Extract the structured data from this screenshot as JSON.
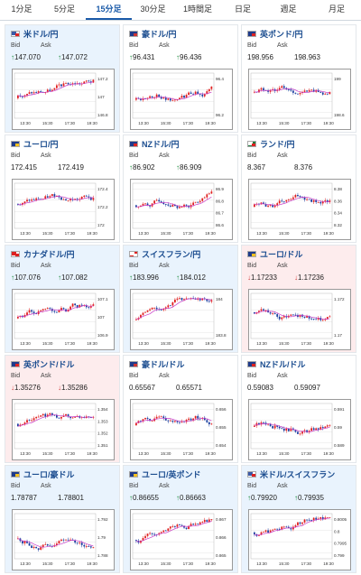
{
  "tabs": [
    {
      "label": "1分足"
    },
    {
      "label": "5分足"
    },
    {
      "label": "15分足",
      "active": true
    },
    {
      "label": "30分足"
    },
    {
      "label": "1時間足"
    },
    {
      "label": "日足"
    },
    {
      "label": "週足"
    },
    {
      "label": "月足"
    }
  ],
  "labels": {
    "bid": "Bid",
    "ask": "Ask"
  },
  "colors": {
    "up": "#1a8a3a",
    "down": "#d23a3a",
    "candle_up": "#e02020",
    "candle_down": "#1c3fa0",
    "ma": "#c83cc8",
    "pair": "#1a4c8f"
  },
  "cards": [
    {
      "pair": "米ドル/円",
      "flag": "us",
      "bg": "blue",
      "trend": "up",
      "bid": "147.070",
      "ask": "147.072",
      "yticks": [
        "147.2",
        "147",
        "146.8"
      ],
      "xticks": [
        "13:30",
        "15:30",
        "17:30",
        "19:30"
      ]
    },
    {
      "pair": "豪ドル/円",
      "flag": "au",
      "bg": "white",
      "trend": "up",
      "bid": "96.431",
      "ask": "96.436",
      "yticks": [
        "96.4",
        "96.2"
      ],
      "xticks": [
        "13:30",
        "15:30",
        "17:30",
        "19:30"
      ]
    },
    {
      "pair": "英ポンド/円",
      "flag": "uk",
      "bg": "white",
      "trend": "none",
      "bid": "198.956",
      "ask": "198.963",
      "yticks": [
        "199",
        "198.6"
      ],
      "xticks": [
        "13:30",
        "15:30",
        "17:30",
        "19:30"
      ]
    },
    {
      "pair": "ユーロ/円",
      "flag": "eu",
      "bg": "white",
      "trend": "none",
      "bid": "172.415",
      "ask": "172.419",
      "yticks": [
        "172.4",
        "172.2",
        "172"
      ],
      "xticks": [
        "13:30",
        "15:30",
        "17:30",
        "19:30"
      ]
    },
    {
      "pair": "NZドル/円",
      "flag": "nz",
      "bg": "white",
      "trend": "up",
      "bid": "86.902",
      "ask": "86.909",
      "yticks": [
        "86.9",
        "86.8",
        "86.7",
        "86.6"
      ],
      "xticks": [
        "13:30",
        "15:30",
        "17:30",
        "19:30"
      ]
    },
    {
      "pair": "ランド/円",
      "flag": "za",
      "bg": "white",
      "trend": "none",
      "bid": "8.367",
      "ask": "8.376",
      "yticks": [
        "8.38",
        "8.36",
        "8.34",
        "8.32"
      ],
      "xticks": [
        "13:30",
        "15:30",
        "17:30",
        "19:30"
      ]
    },
    {
      "pair": "カナダドル/円",
      "flag": "ca",
      "bg": "blue",
      "trend": "up",
      "bid": "107.076",
      "ask": "107.082",
      "yticks": [
        "107.1",
        "107",
        "106.9"
      ],
      "xticks": [
        "13:30",
        "15:30",
        "17:30",
        "19:30"
      ]
    },
    {
      "pair": "スイスフラン/円",
      "flag": "ch",
      "bg": "blue",
      "trend": "up",
      "bid": "183.996",
      "ask": "184.012",
      "yticks": [
        "184",
        "183.8"
      ],
      "xticks": [
        "13:30",
        "15:30",
        "17:30",
        "19:30"
      ]
    },
    {
      "pair": "ユーロ/ドル",
      "flag": "eu",
      "bg": "red",
      "trend": "down",
      "bid": "1.17233",
      "ask": "1.17236",
      "yticks": [
        "1.172",
        "1.17"
      ],
      "xticks": [
        "13:30",
        "15:30",
        "17:30",
        "19:30"
      ]
    },
    {
      "pair": "英ポンド/ドル",
      "flag": "uk",
      "bg": "red",
      "trend": "down",
      "bid": "1.35276",
      "ask": "1.35286",
      "yticks": [
        "1.354",
        "1.353",
        "1.352",
        "1.351"
      ],
      "xticks": [
        "13:30",
        "15:30",
        "17:30",
        "19:30"
      ]
    },
    {
      "pair": "豪ドル/ドル",
      "flag": "au",
      "bg": "white",
      "trend": "none",
      "bid": "0.65567",
      "ask": "0.65571",
      "yticks": [
        "0.656",
        "0.655",
        "0.654"
      ],
      "xticks": [
        "13:30",
        "15:30",
        "17:30",
        "19:30"
      ]
    },
    {
      "pair": "NZドル/ドル",
      "flag": "nz",
      "bg": "white",
      "trend": "none",
      "bid": "0.59083",
      "ask": "0.59097",
      "yticks": [
        "0.591",
        "0.59",
        "0.589"
      ],
      "xticks": [
        "13:30",
        "15:30",
        "17:30",
        "19:30"
      ]
    },
    {
      "pair": "ユーロ/豪ドル",
      "flag": "eu",
      "bg": "blue",
      "trend": "none",
      "bid": "1.78787",
      "ask": "1.78801",
      "yticks": [
        "1.792",
        "1.79",
        "1.788"
      ],
      "xticks": [
        "13:30",
        "15:30",
        "17:30",
        "19:30"
      ]
    },
    {
      "pair": "ユーロ/英ポンド",
      "flag": "eu",
      "bg": "blue",
      "trend": "up",
      "bid": "0.86655",
      "ask": "0.86663",
      "yticks": [
        "0.867",
        "0.866",
        "0.865"
      ],
      "xticks": [
        "13:30",
        "15:30",
        "17:30",
        "19:30"
      ]
    },
    {
      "pair": "米ドル/スイスフラン",
      "flag": "us",
      "bg": "blue",
      "trend": "up",
      "bid": "0.79920",
      "ask": "0.79935",
      "yticks": [
        "0.8005",
        "0.8",
        "0.7995",
        "0.799"
      ],
      "xticks": [
        "13:30",
        "15:30",
        "17:30",
        "19:30"
      ]
    }
  ]
}
